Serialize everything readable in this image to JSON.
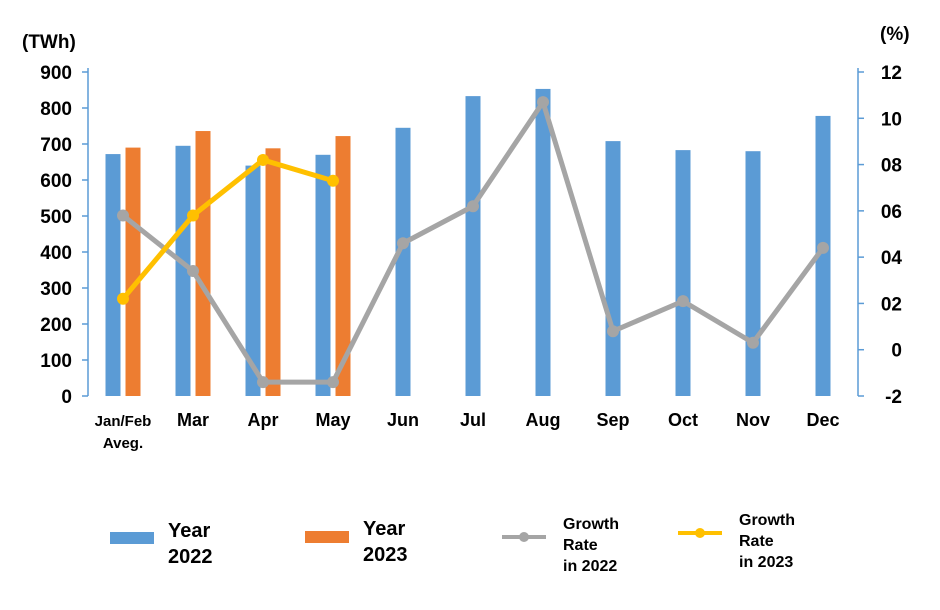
{
  "chart_data": {
    "type": "bar",
    "categories": [
      "Jan/Feb\nAveg.",
      "Mar",
      "Apr",
      "May",
      "Jun",
      "Jul",
      "Aug",
      "Sep",
      "Oct",
      "Nov",
      "Dec"
    ],
    "left_axis": {
      "unit_label": "(TWh)",
      "ylim": [
        0,
        900
      ],
      "ticks": [
        "0",
        "100",
        "200",
        "300",
        "400",
        "500",
        "600",
        "700",
        "800",
        "900"
      ]
    },
    "right_axis": {
      "unit_label": "(%)",
      "ylim": [
        -2,
        12
      ],
      "ticks": [
        "-2",
        "0",
        "02",
        "04",
        "06",
        "08",
        "10",
        "12"
      ]
    },
    "series": [
      {
        "name": "Year 2022",
        "kind": "bar",
        "axis": "left",
        "color": "#5B9BD5",
        "values": [
          672,
          695,
          640,
          670,
          745,
          833,
          853,
          708,
          683,
          680,
          778
        ]
      },
      {
        "name": "Year 2023",
        "kind": "bar",
        "axis": "left",
        "color": "#ED7D31",
        "values": [
          690,
          736,
          688,
          722,
          null,
          null,
          null,
          null,
          null,
          null,
          null
        ]
      },
      {
        "name": "Growth Rate in 2022",
        "kind": "line",
        "axis": "right",
        "color": "#A5A5A5",
        "values": [
          5.8,
          3.4,
          -1.4,
          -1.4,
          4.6,
          6.2,
          10.7,
          0.8,
          2.1,
          0.3,
          4.4
        ]
      },
      {
        "name": "Growth Rate in 2023",
        "kind": "line",
        "axis": "right",
        "color": "#FFC000",
        "values": [
          2.2,
          5.8,
          8.2,
          7.3,
          null,
          null,
          null,
          null,
          null,
          null,
          null
        ]
      }
    ],
    "grid": false,
    "legend_position": "bottom"
  },
  "legend": [
    {
      "line1": "Year",
      "line2": "2022",
      "line3": ""
    },
    {
      "line1": "Year",
      "line2": "2023",
      "line3": ""
    },
    {
      "line1": "Growth",
      "line2": "Rate",
      "line3": "in 2022"
    },
    {
      "line1": "Growth",
      "line2": "Rate",
      "line3": "in 2023"
    }
  ]
}
